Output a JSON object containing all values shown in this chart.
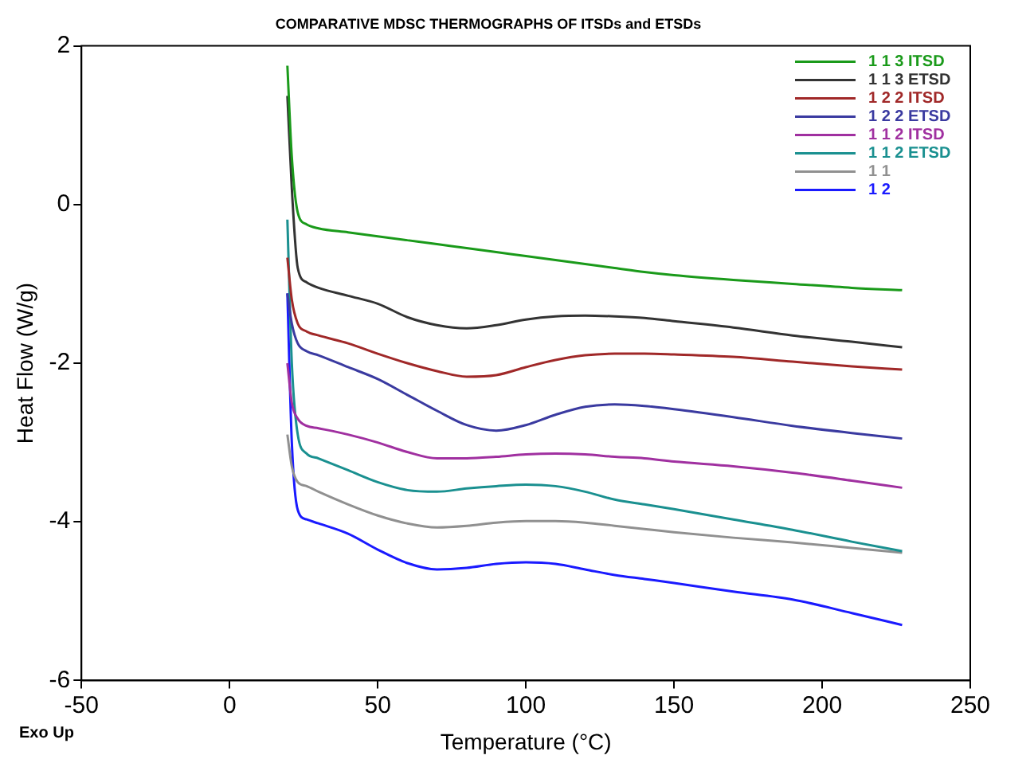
{
  "chart_data": {
    "type": "line",
    "title": "COMPARATIVE MDSC THERMOGRAPHS OF ITSDs and ETSDs",
    "xlabel": "Temperature (°C)",
    "ylabel": "Heat Flow (W/g)",
    "annotations": [
      "Exo Up"
    ],
    "x": [
      19.5,
      21,
      23,
      26,
      30,
      40,
      50,
      60,
      70,
      80,
      90,
      100,
      110,
      120,
      130,
      140,
      150,
      170,
      190,
      210,
      227
    ],
    "xlim": [
      -50,
      250
    ],
    "xticks": [
      -50,
      0,
      50,
      100,
      150,
      200,
      250
    ],
    "ylim": [
      -6,
      2
    ],
    "yticks": [
      -6,
      -4,
      -2,
      0,
      2
    ],
    "grid": false,
    "legend": "top right",
    "marker": "none",
    "line_style": "solid",
    "series": [
      {
        "name": "1 1 3 ITSD",
        "color": "#1a9a1a",
        "values": [
          1.75,
          0.6,
          -0.1,
          -0.25,
          -0.3,
          -0.35,
          -0.4,
          -0.45,
          -0.5,
          -0.55,
          -0.6,
          -0.65,
          -0.7,
          -0.75,
          -0.8,
          -0.85,
          -0.89,
          -0.95,
          -1.0,
          -1.05,
          -1.08
        ]
      },
      {
        "name": "1 1 3 ETSD",
        "color": "#333333",
        "values": [
          1.37,
          0.2,
          -0.8,
          -0.98,
          -1.05,
          -1.15,
          -1.25,
          -1.42,
          -1.52,
          -1.56,
          -1.52,
          -1.45,
          -1.41,
          -1.4,
          -1.41,
          -1.43,
          -1.47,
          -1.55,
          -1.65,
          -1.73,
          -1.8
        ]
      },
      {
        "name": "1 2 2 ITSD",
        "color": "#a02828",
        "values": [
          -0.67,
          -1.2,
          -1.5,
          -1.6,
          -1.65,
          -1.75,
          -1.88,
          -2.0,
          -2.1,
          -2.17,
          -2.15,
          -2.05,
          -1.96,
          -1.9,
          -1.88,
          -1.88,
          -1.89,
          -1.92,
          -1.98,
          -2.04,
          -2.08
        ]
      },
      {
        "name": "1 2 2 ETSD",
        "color": "#3a3aa0",
        "values": [
          -1.12,
          -1.5,
          -1.75,
          -1.85,
          -1.9,
          -2.05,
          -2.2,
          -2.4,
          -2.6,
          -2.78,
          -2.85,
          -2.78,
          -2.65,
          -2.55,
          -2.52,
          -2.54,
          -2.58,
          -2.68,
          -2.79,
          -2.88,
          -2.95
        ]
      },
      {
        "name": "1 1 2 ITSD",
        "color": "#a030a0",
        "values": [
          -2.0,
          -2.5,
          -2.7,
          -2.79,
          -2.82,
          -2.9,
          -3.0,
          -3.12,
          -3.2,
          -3.2,
          -3.18,
          -3.15,
          -3.14,
          -3.15,
          -3.18,
          -3.2,
          -3.24,
          -3.3,
          -3.38,
          -3.48,
          -3.57
        ]
      },
      {
        "name": "1 1 2 ETSD",
        "color": "#1a9090",
        "values": [
          -0.19,
          -2.0,
          -2.9,
          -3.14,
          -3.2,
          -3.35,
          -3.5,
          -3.6,
          -3.62,
          -3.58,
          -3.55,
          -3.53,
          -3.55,
          -3.62,
          -3.72,
          -3.78,
          -3.84,
          -3.97,
          -4.1,
          -4.25,
          -4.37
        ]
      },
      {
        "name": "1 1",
        "color": "#909090",
        "values": [
          -2.9,
          -3.3,
          -3.5,
          -3.55,
          -3.62,
          -3.78,
          -3.92,
          -4.02,
          -4.07,
          -4.05,
          -4.01,
          -3.99,
          -3.99,
          -4.01,
          -4.05,
          -4.09,
          -4.13,
          -4.2,
          -4.26,
          -4.33,
          -4.39
        ]
      },
      {
        "name": "1 2",
        "color": "#1a1aff",
        "values": [
          -1.12,
          -3.0,
          -3.85,
          -3.97,
          -4.02,
          -4.15,
          -4.35,
          -4.52,
          -4.6,
          -4.58,
          -4.53,
          -4.51,
          -4.53,
          -4.6,
          -4.67,
          -4.72,
          -4.77,
          -4.88,
          -4.98,
          -5.15,
          -5.3
        ]
      }
    ]
  }
}
